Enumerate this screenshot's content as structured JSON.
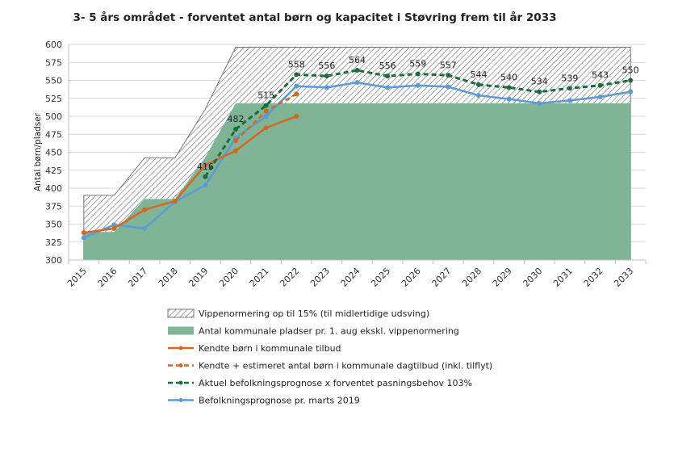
{
  "chart_data": {
    "type": "area",
    "title": "3- 5 års området - forventet antal børn og kapacitet i Støvring frem til år 2033",
    "ylabel": "Antal børn/pladser",
    "xlabel": "",
    "ylim": [
      300,
      600
    ],
    "y_ticks": [
      300,
      325,
      350,
      375,
      400,
      425,
      450,
      475,
      500,
      525,
      550,
      575,
      600
    ],
    "categories": [
      "2015",
      "2016",
      "2017",
      "2018",
      "2019",
      "2020",
      "2021",
      "2022",
      "2023",
      "2024",
      "2025",
      "2026",
      "2027",
      "2028",
      "2029",
      "2030",
      "2031",
      "2032",
      "2033"
    ],
    "grid": true,
    "legend_position": "bottom",
    "series": [
      {
        "name": "Vippenormering op til 15% (til midlertidige udsving)",
        "kind": "hatched-area",
        "values": [
          390,
          390,
          442,
          442,
          510,
          596,
          596,
          596,
          596,
          596,
          596,
          596,
          596,
          596,
          596,
          596,
          596,
          596,
          596
        ]
      },
      {
        "name": "Antal kommunale pladser pr. 1. aug ekskl. vippenormering",
        "kind": "area",
        "color": "#80b497",
        "values": [
          339,
          339,
          385,
          385,
          443,
          518,
          518,
          518,
          518,
          518,
          518,
          518,
          518,
          518,
          518,
          518,
          518,
          518,
          518
        ]
      },
      {
        "name": "Kendte børn i kommunale tilbud",
        "kind": "line",
        "color": "#d2691e",
        "values": [
          338,
          344,
          370,
          382,
          432,
          452,
          484,
          500,
          null,
          null,
          null,
          null,
          null,
          null,
          null,
          null,
          null,
          null,
          null
        ]
      },
      {
        "name": "Kendte + estimeret antal børn i kommunale dagtilbud (inkl. tilflyt)",
        "kind": "dashed-line",
        "color": "#d2691e",
        "values": [
          null,
          null,
          null,
          null,
          null,
          466,
          507,
          531,
          null,
          null,
          null,
          null,
          null,
          null,
          null,
          null,
          null,
          null,
          null
        ]
      },
      {
        "name": "Aktuel befolkningsprognose x forventet pasningsbehov 103%",
        "kind": "dashed-line",
        "color": "#1e6b3c",
        "values": [
          null,
          null,
          null,
          null,
          416,
          482,
          515,
          558,
          556,
          564,
          556,
          559,
          557,
          544,
          540,
          534,
          539,
          543,
          550
        ],
        "labels": [
          "",
          "",
          "",
          "",
          "416",
          "482",
          "515",
          "558",
          "556",
          "564",
          "556",
          "559",
          "557",
          "544",
          "540",
          "534",
          "539",
          "543",
          "550"
        ]
      },
      {
        "name": "Befolkningsprognose pr. marts 2019",
        "kind": "line",
        "color": "#5b9bd5",
        "values": [
          331,
          349,
          344,
          381,
          404,
          470,
          500,
          542,
          540,
          547,
          540,
          543,
          541,
          529,
          524,
          518,
          522,
          527,
          534
        ]
      }
    ]
  }
}
